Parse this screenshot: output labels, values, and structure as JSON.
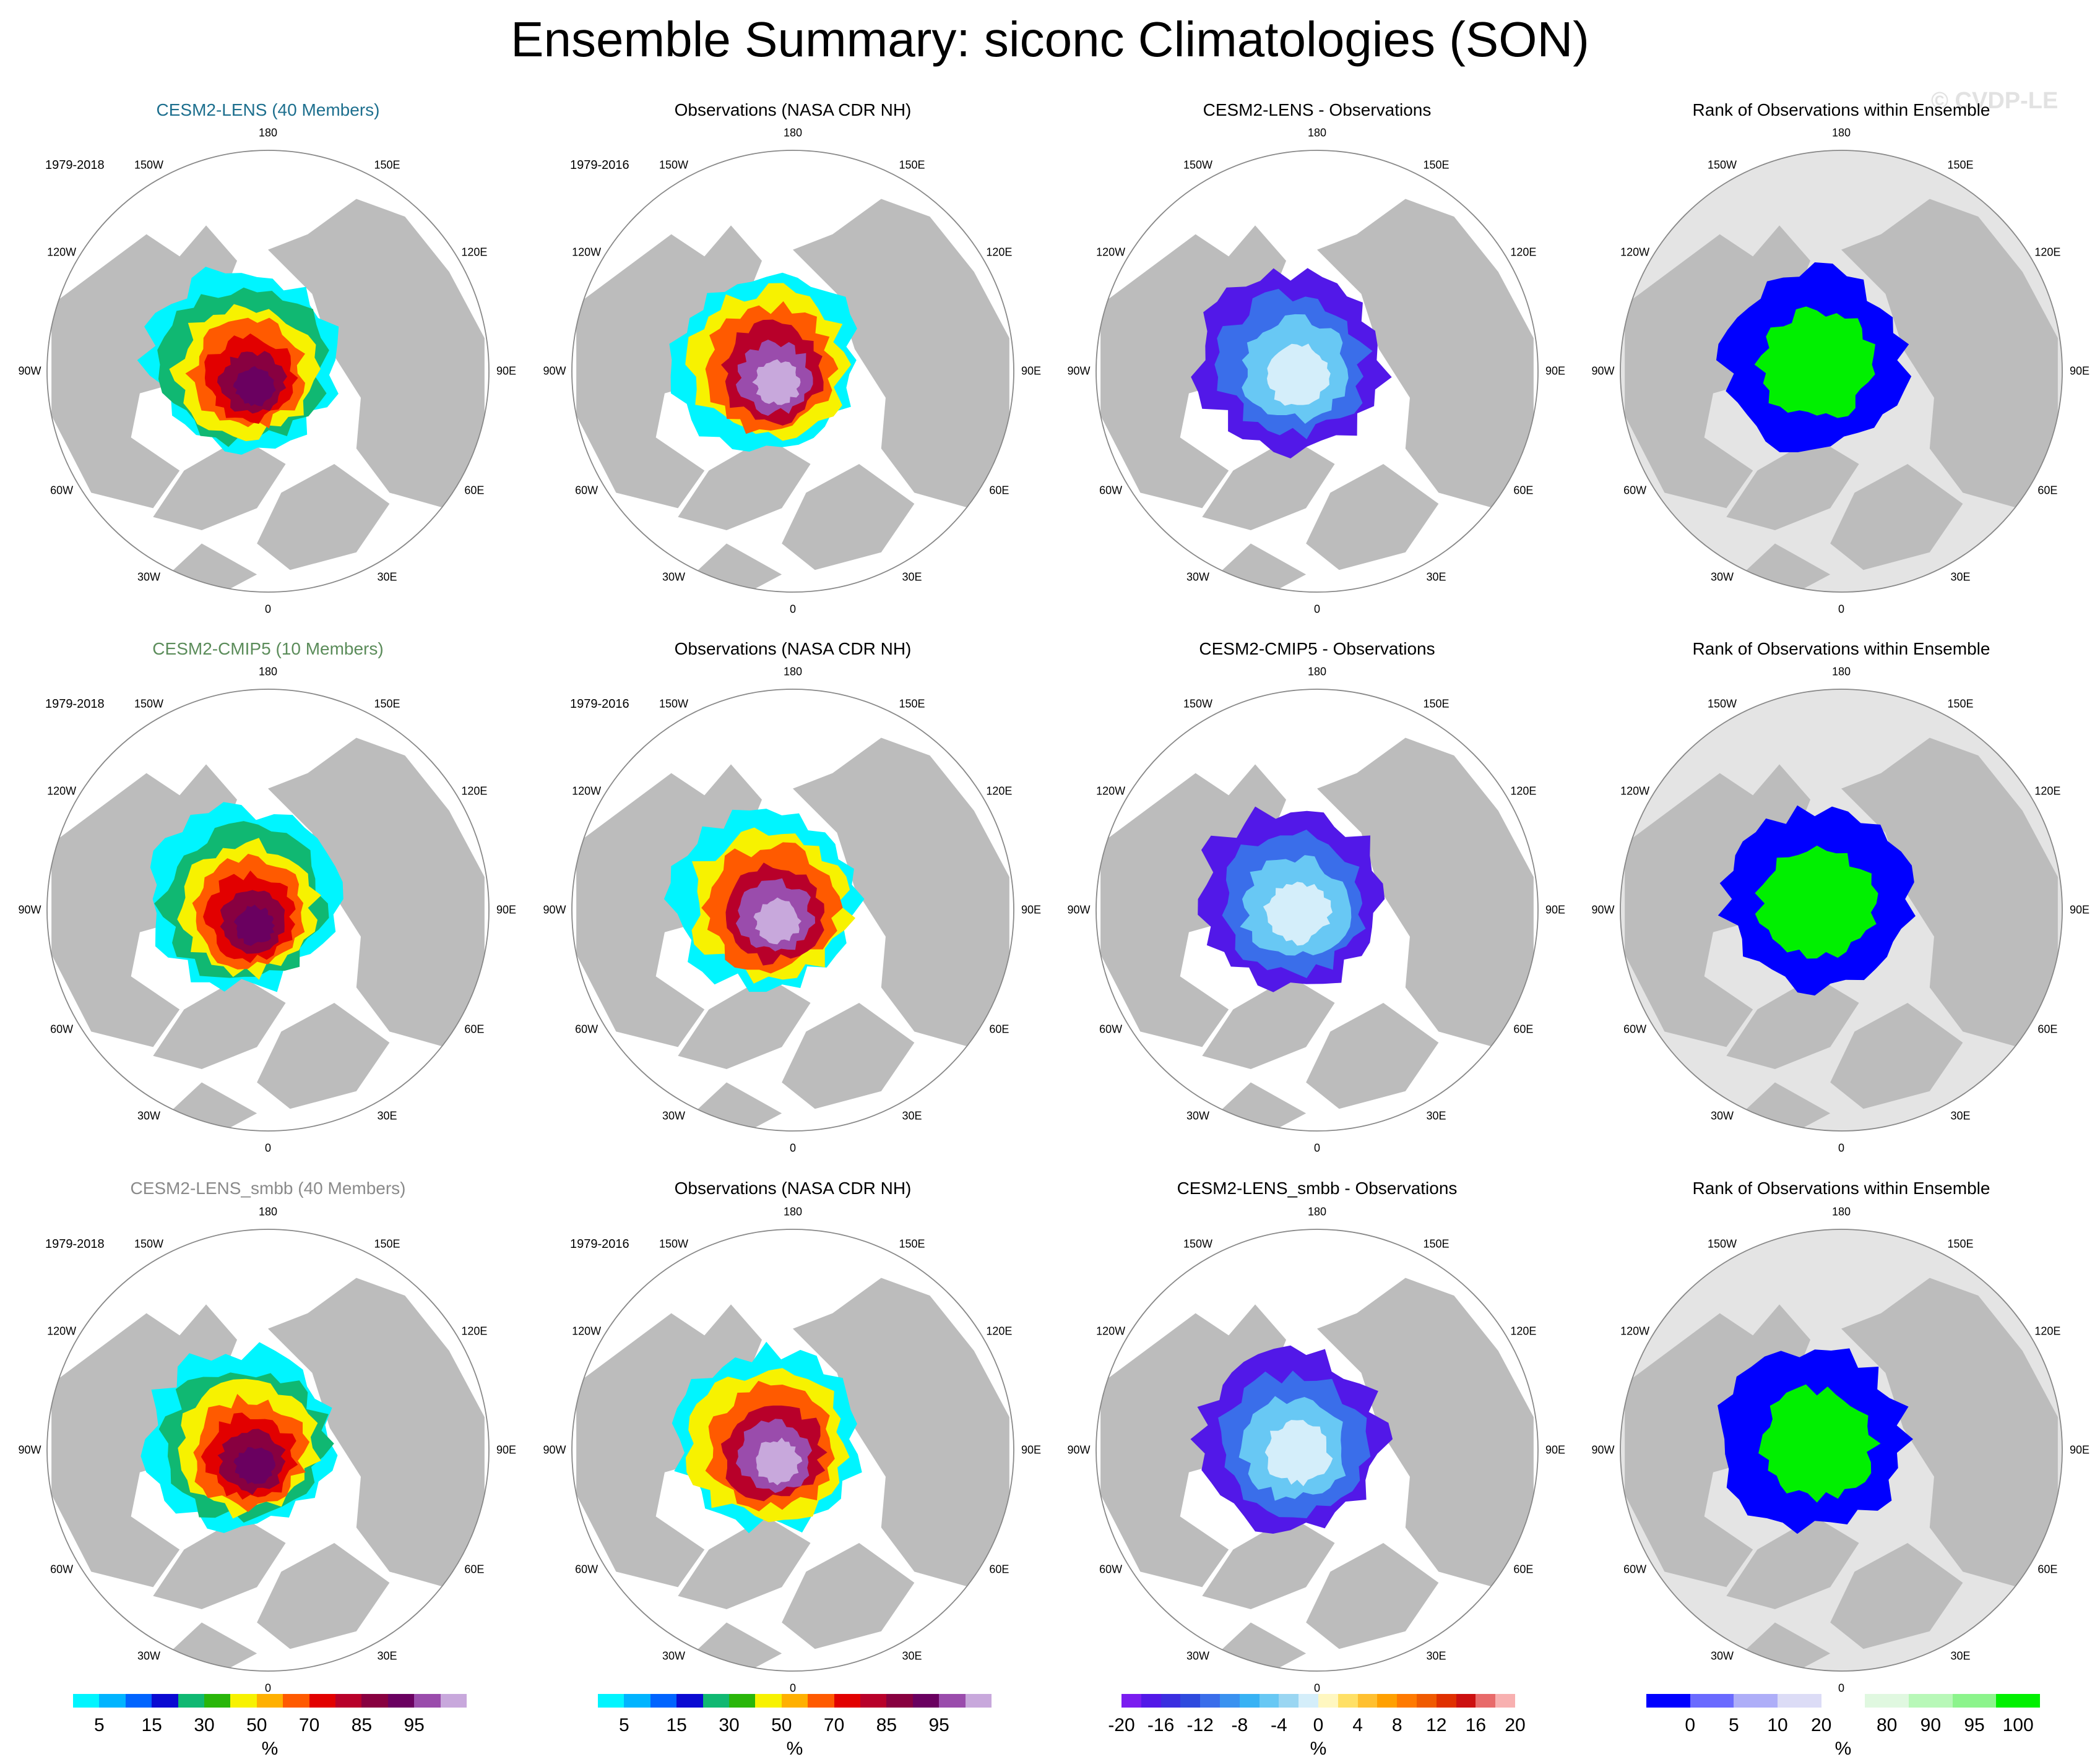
{
  "title": "Ensemble Summary: siconc Climatologies (SON)",
  "watermark": "© CVDP-LE",
  "colors": {
    "land": "#bcbcbc",
    "ocean": "#ffffff",
    "rank_bg": "#e4e4e4",
    "row1_title": "#1d6f8e",
    "row2_title": "#5b8c5a",
    "row3_title": "#8a8a8a"
  },
  "lon_labels": [
    "180",
    "150E",
    "120E",
    "90E",
    "60E",
    "30E",
    "0",
    "30W",
    "60W",
    "90W",
    "120W",
    "150W"
  ],
  "rows": [
    {
      "panels": [
        {
          "title": "CESM2-LENS (40 Members)",
          "period": "1979-2018",
          "kind": "model"
        },
        {
          "title": "Observations (NASA CDR NH)",
          "period": "1979-2016",
          "kind": "obs"
        },
        {
          "title": "CESM2-LENS - Observations",
          "period": "",
          "kind": "diff"
        },
        {
          "title": "Rank of Observations within Ensemble",
          "period": "",
          "kind": "rank"
        }
      ]
    },
    {
      "panels": [
        {
          "title": "CESM2-CMIP5 (10 Members)",
          "period": "1979-2018",
          "kind": "model"
        },
        {
          "title": "Observations (NASA CDR NH)",
          "period": "1979-2016",
          "kind": "obs"
        },
        {
          "title": "CESM2-CMIP5 - Observations",
          "period": "",
          "kind": "diff"
        },
        {
          "title": "Rank of Observations within Ensemble",
          "period": "",
          "kind": "rank"
        }
      ]
    },
    {
      "panels": [
        {
          "title": "CESM2-LENS_smbb (40 Members)",
          "period": "1979-2018",
          "kind": "model"
        },
        {
          "title": "Observations (NASA CDR NH)",
          "period": "1979-2016",
          "kind": "obs"
        },
        {
          "title": "CESM2-LENS_smbb - Observations",
          "period": "",
          "kind": "diff"
        },
        {
          "title": "Rank of Observations within Ensemble",
          "period": "",
          "kind": "rank"
        }
      ]
    }
  ],
  "colorbars": [
    {
      "unit": "%",
      "ticks": [
        "5",
        "15",
        "30",
        "50",
        "70",
        "85",
        "95"
      ],
      "colors": [
        "#00f5ff",
        "#00b4ff",
        "#0064ff",
        "#0a0ad2",
        "#10b872",
        "#29b60a",
        "#f7f200",
        "#ffb000",
        "#ff5a00",
        "#e20000",
        "#b8002a",
        "#880040",
        "#6a0060",
        "#9a4cac",
        "#c8a8dc"
      ]
    },
    {
      "unit": "%",
      "ticks": [
        "5",
        "15",
        "30",
        "50",
        "70",
        "85",
        "95"
      ],
      "colors": [
        "#00f5ff",
        "#00b4ff",
        "#0064ff",
        "#0a0ad2",
        "#10b872",
        "#29b60a",
        "#f7f200",
        "#ffb000",
        "#ff5a00",
        "#e20000",
        "#b8002a",
        "#880040",
        "#6a0060",
        "#9a4cac",
        "#c8a8dc"
      ]
    },
    {
      "unit": "%",
      "ticks": [
        "-20",
        "-16",
        "-12",
        "-8",
        "-4",
        "0",
        "4",
        "8",
        "12",
        "16",
        "20"
      ],
      "colors": [
        "#7a1cf0",
        "#5218e8",
        "#3a2ee0",
        "#2e4ade",
        "#3a6eea",
        "#3a92f0",
        "#38b2f4",
        "#68c8f4",
        "#9ad6f2",
        "#d4eefa",
        "#fff7c0",
        "#ffe066",
        "#ffc030",
        "#ffa000",
        "#ff7a00",
        "#f05a00",
        "#e03000",
        "#cc1010",
        "#e86a6a",
        "#f8b0b0"
      ]
    },
    {
      "unit": "%",
      "ticks": [
        "0",
        "5",
        "10",
        "20",
        "80",
        "90",
        "95",
        "100"
      ],
      "colors": [
        "#0000ff",
        "#6a6aff",
        "#aeaef8",
        "#dcdcf6",
        "#ffffff",
        "#e0f8e0",
        "#b8f8b8",
        "#8cf48c",
        "#00f000"
      ]
    }
  ]
}
